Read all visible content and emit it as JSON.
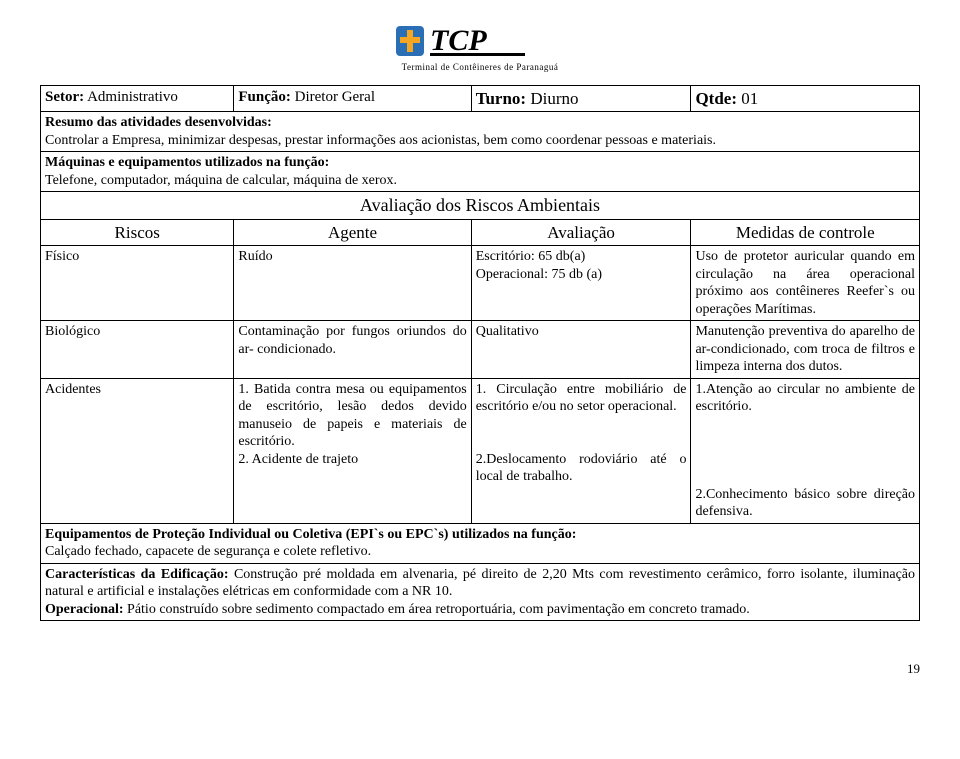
{
  "logo": {
    "text": "TCP",
    "tagline": "Terminal de Contêineres de Paranaguá",
    "shield_color": "#2a6fb5",
    "cross_color": "#f5a623",
    "text_color": "#000000"
  },
  "header": {
    "setor_label": "Setor:",
    "setor_value": " Administrativo",
    "funcao_label": "Função:",
    "funcao_value": " Diretor Geral",
    "turno_label": "Turno:",
    "turno_value": " Diurno",
    "qtde_label": "Qtde:",
    "qtde_value": " 01"
  },
  "resumo": {
    "label": "Resumo das atividades desenvolvidas:",
    "text": "Controlar a Empresa, minimizar despesas, prestar informações aos acionistas, bem como coordenar pessoas e materiais."
  },
  "maquinas": {
    "label": "Máquinas e equipamentos utilizados na função:",
    "text": "Telefone, computador, máquina de calcular, máquina de xerox."
  },
  "avaliacao_title": "Avaliação dos Riscos Ambientais",
  "cols": {
    "riscos": "Riscos",
    "agente": "Agente",
    "avaliacao": "Avaliação",
    "medidas": "Medidas de controle"
  },
  "rows": [
    {
      "risco": "Físico",
      "agente": "Ruído",
      "avaliacao": "Escritório: 65 db(a)\nOperacional: 75 db (a)",
      "medidas": "Uso de protetor auricular quando em circulação na área operacional próximo aos contêineres Reefer`s ou operações Marítimas."
    },
    {
      "risco": "Biológico",
      "agente": "Contaminação por fungos oriundos do ar- condicionado.",
      "avaliacao": "Qualitativo",
      "medidas": "Manutenção preventiva do aparelho de ar-condicionado, com troca de filtros e limpeza interna dos dutos."
    },
    {
      "risco": "Acidentes",
      "agente": "1. Batida contra mesa ou equipamentos de escritório, lesão dedos devido manuseio de papeis e materiais de escritório.\n2. Acidente de trajeto",
      "avaliacao": "1. Circulação entre mobiliário de escritório e/ou no setor operacional.\n\n2.Deslocamento rodoviário até o local de trabalho.",
      "medidas": "1.Atenção ao circular no ambiente de escritório.\n\n\n2.Conhecimento básico sobre direção defensiva."
    }
  ],
  "epi": {
    "label": "Equipamentos de Proteção Individual ou Coletiva (EPI`s ou EPC`s) utilizados na função:",
    "text": "Calçado fechado, capacete de segurança e colete refletivo."
  },
  "caracteristicas": {
    "label": "Características da Edificação:",
    "text": " Construção pré moldada em alvenaria, pé direito de 2,20 Mts com revestimento cerâmico, forro isolante, iluminação natural e artificial e instalações elétricas em conformidade com a NR 10.",
    "op_label": "Operacional:",
    "op_text": " Pátio construído sobre sedimento compactado em área retroportuária, com pavimentação em concreto tramado."
  },
  "page_number": "19",
  "widths": {
    "c1": "22%",
    "c2": "27%",
    "c3": "25%",
    "c4": "26%"
  }
}
